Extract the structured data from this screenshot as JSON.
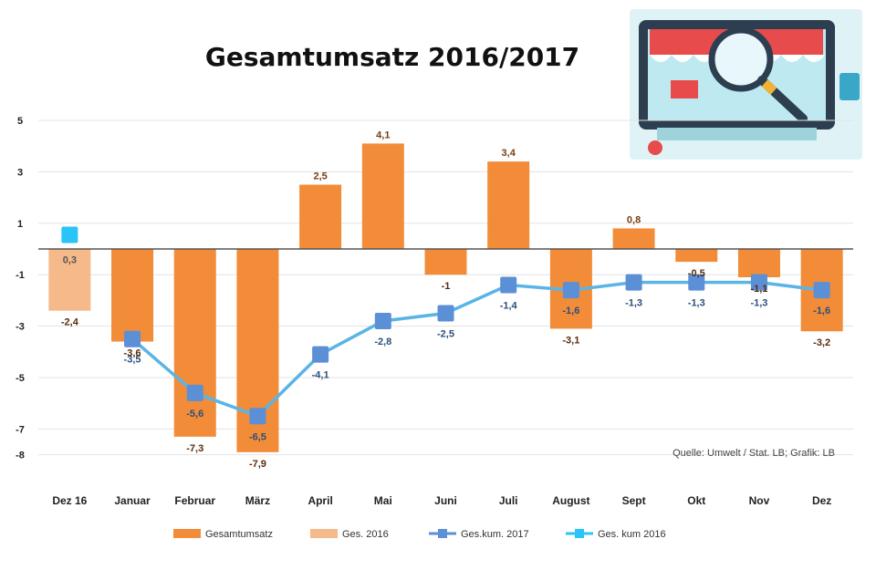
{
  "chart_data": {
    "type": "bar",
    "title": "Gesamtumsatz 2016/2017",
    "categories": [
      "Dez 16",
      "Januar",
      "Februar",
      "März",
      "April",
      "Mai",
      "Juni",
      "Juli",
      "August",
      "Sept",
      "Okt",
      "Nov",
      "Dez"
    ],
    "ylim": [
      -8,
      5
    ],
    "yticks": [
      5,
      3,
      1,
      -1,
      -3,
      -5,
      -7,
      -8
    ],
    "grid": true,
    "legend_position": "bottom",
    "source": "Quelle: Umwelt / Stat. LB; Grafik: LB",
    "series": [
      {
        "name": "Gesamtumsatz",
        "type": "bar",
        "color": "#f28c38",
        "values": [
          null,
          -3.6,
          -7.3,
          -7.9,
          2.5,
          4.1,
          -1.0,
          3.4,
          -3.1,
          0.8,
          -0.5,
          -1.1,
          -3.2
        ],
        "labels": [
          "",
          "-3,6",
          "-7,3",
          "-7,9",
          "2,5",
          "4,1",
          "-1",
          "3,4",
          "-3,1",
          "0,8",
          "-0,5",
          "-1,1",
          "-3,2"
        ]
      },
      {
        "name": "Ges. 2016",
        "type": "bar",
        "color": "#f6b98a",
        "values": [
          -2.4,
          null,
          null,
          null,
          null,
          null,
          null,
          null,
          null,
          null,
          null,
          null,
          null
        ],
        "labels": [
          "-2,4",
          "",
          "",
          "",
          "",
          "",
          "",
          "",
          "",
          "",
          "",
          "",
          ""
        ]
      },
      {
        "name": "Ges.kum. 2017",
        "type": "line",
        "color": "#5ab4e6",
        "marker_color": "#5b8fd6",
        "values": [
          null,
          -3.5,
          -5.6,
          -6.5,
          -4.1,
          -2.8,
          -2.5,
          -1.4,
          -1.6,
          -1.3,
          -1.3,
          -1.3,
          -1.6
        ],
        "labels": [
          "",
          "-3,5",
          "-5,6",
          "-6,5",
          "-4,1",
          "-2,8",
          "-2,5",
          "-1,4",
          "-1,6",
          "-1,3",
          "-1,3",
          "-1,3",
          "-1,6"
        ]
      },
      {
        "name": "Ges. kum 2016",
        "type": "marker",
        "color": "#29c5f6",
        "values": [
          0.3,
          null,
          null,
          null,
          null,
          null,
          null,
          null,
          null,
          null,
          null,
          null,
          null
        ],
        "labels": [
          "0,3",
          "",
          "",
          "",
          "",
          "",
          "",
          "",
          "",
          "",
          "",
          "",
          ""
        ]
      }
    ]
  },
  "legend": {
    "items": [
      {
        "label": "Gesamtumsatz",
        "swatch": "bar",
        "color": "#f28c38"
      },
      {
        "label": "Ges. 2016",
        "swatch": "bar",
        "color": "#f6b98a"
      },
      {
        "label": "Ges.kum. 2017",
        "swatch": "line",
        "color": "#5b8fd6"
      },
      {
        "label": "Ges. kum 2016",
        "swatch": "line",
        "color": "#29c5f6"
      }
    ]
  },
  "illustration": {
    "icon": "magnifier-over-shop-icon"
  }
}
